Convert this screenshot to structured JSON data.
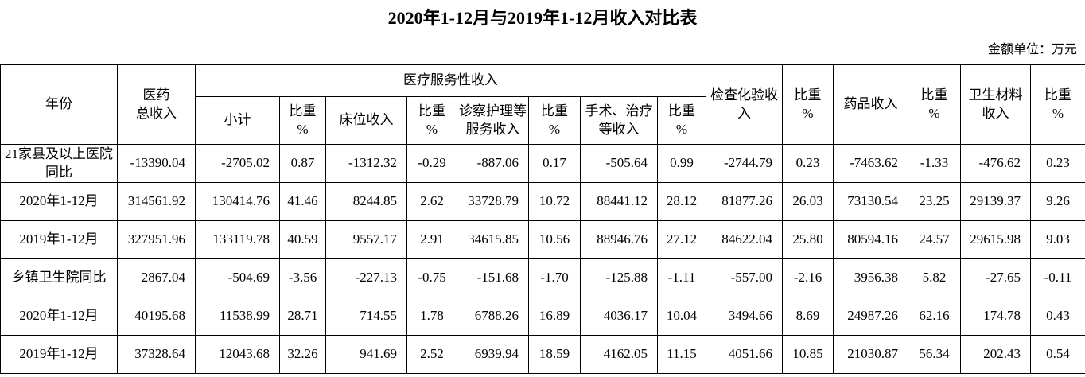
{
  "title": "2020年1-12月与2019年1-12月收入对比表",
  "unit_note": "金额单位：万元",
  "table": {
    "header": {
      "year": "年份",
      "total_income": "医药\n总收入",
      "service_group": "医疗服务性收入",
      "sub": [
        "小计",
        "比重\n%",
        "床位收入",
        "比重\n%",
        "诊察护理等\n服务收入",
        "比重\n%",
        "手术、治疗\n等收入",
        "比重\n%"
      ],
      "exam_income": "检查化验收入",
      "drug_income": "药品收入",
      "material_income": "卫生材料收入",
      "pct": "比重\n%"
    },
    "rows": [
      {
        "label": "21家县及以上医院\n同比",
        "values": [
          "-13390.04",
          "-2705.02",
          "0.87",
          "-1312.32",
          "-0.29",
          "-887.06",
          "0.17",
          "-505.64",
          "0.99",
          "-2744.79",
          "0.23",
          "-7463.62",
          "-1.33",
          "-476.62",
          "0.23"
        ]
      },
      {
        "label": "2020年1-12月",
        "values": [
          "314561.92",
          "130414.76",
          "41.46",
          "8244.85",
          "2.62",
          "33728.79",
          "10.72",
          "88441.12",
          "28.12",
          "81877.26",
          "26.03",
          "73130.54",
          "23.25",
          "29139.37",
          "9.26"
        ]
      },
      {
        "label": "2019年1-12月",
        "values": [
          "327951.96",
          "133119.78",
          "40.59",
          "9557.17",
          "2.91",
          "34615.85",
          "10.56",
          "88946.76",
          "27.12",
          "84622.04",
          "25.80",
          "80594.16",
          "24.57",
          "29615.98",
          "9.03"
        ]
      },
      {
        "label": "乡镇卫生院同比",
        "values": [
          "2867.04",
          "-504.69",
          "-3.56",
          "-227.13",
          "-0.75",
          "-151.68",
          "-1.70",
          "-125.88",
          "-1.11",
          "-557.00",
          "-2.16",
          "3956.38",
          "5.82",
          "-27.65",
          "-0.11"
        ]
      },
      {
        "label": "2020年1-12月",
        "values": [
          "40195.68",
          "11538.99",
          "28.71",
          "714.55",
          "1.78",
          "6788.26",
          "16.89",
          "4036.17",
          "10.04",
          "3494.66",
          "8.69",
          "24987.26",
          "62.16",
          "174.78",
          "0.43"
        ]
      },
      {
        "label": "2019年1-12月",
        "values": [
          "37328.64",
          "12043.68",
          "32.26",
          "941.69",
          "2.52",
          "6939.94",
          "18.59",
          "4162.05",
          "11.15",
          "4051.66",
          "10.85",
          "21030.87",
          "56.34",
          "202.43",
          "0.54"
        ]
      }
    ]
  }
}
